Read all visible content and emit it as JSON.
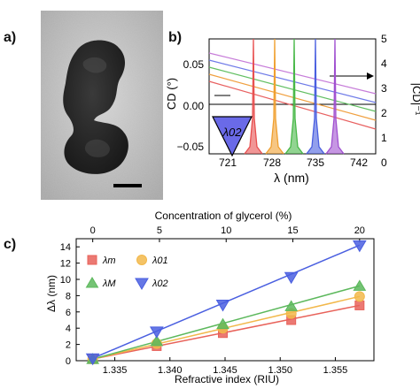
{
  "panels": {
    "a": "a)",
    "b": "b)",
    "c": "c)"
  },
  "panel_b": {
    "y_left_label": "CD (°)",
    "y_right_label": "|CD|⁻¹",
    "x_label": "λ (nm)",
    "inset_label": "λ02",
    "x_ticks": [
      "721",
      "728",
      "735",
      "742"
    ],
    "y_left_ticks": [
      "0.05",
      "0.00",
      "−0.05"
    ],
    "y_right_ticks": [
      "0",
      "1",
      "2",
      "3",
      "4",
      "5"
    ]
  },
  "panel_c": {
    "top_axis_label": "Concentration of glycerol (%)",
    "x_label": "Refractive index (RIU)",
    "y_label": "Δλ (nm)",
    "top_ticks": [
      "0",
      "5",
      "10",
      "15",
      "20"
    ],
    "x_ticks": [
      "1.335",
      "1.340",
      "1.345",
      "1.350",
      "1.355"
    ],
    "y_ticks": [
      "0",
      "2",
      "4",
      "6",
      "8",
      "10",
      "12",
      "14"
    ]
  },
  "chart_data": {
    "type": "scatter",
    "xlabel": "Refractive index (RIU)",
    "ylabel": "Δλ (nm)",
    "top_xlabel": "Concentration of glycerol (%)",
    "xlim": [
      1.3315,
      1.3585
    ],
    "ylim": [
      0,
      15
    ],
    "x": [
      1.333,
      1.3388,
      1.3448,
      1.351,
      1.3572
    ],
    "series": [
      {
        "name": "λm",
        "marker": "square",
        "color": "#e8625a",
        "values": [
          0.2,
          1.8,
          3.4,
          5.0,
          6.8
        ]
      },
      {
        "name": "λ01",
        "marker": "circle",
        "color": "#f2b84b",
        "values": [
          0.2,
          2.1,
          4.0,
          5.8,
          7.9
        ]
      },
      {
        "name": "λM",
        "marker": "triangle-up",
        "color": "#5cb85c",
        "values": [
          0.2,
          2.4,
          4.5,
          6.7,
          9.2
        ]
      },
      {
        "name": "λ02",
        "marker": "triangle-down",
        "color": "#4a5fe0",
        "values": [
          0.3,
          3.6,
          6.9,
          10.3,
          14.2
        ]
      }
    ]
  }
}
